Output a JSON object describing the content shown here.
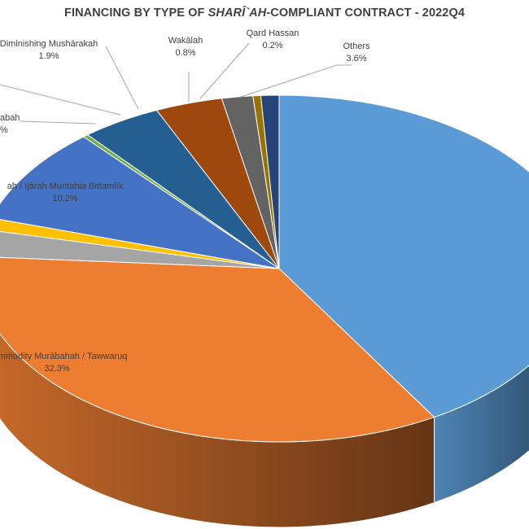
{
  "chart_data": {
    "type": "pie",
    "title_parts": {
      "before": "FINANCING BY TYPE OF ",
      "italic": "SHARĪ`AH",
      "after": "-COMPLIANT CONTRACT - 2022Q4"
    },
    "three_d": true,
    "slices": [
      {
        "label": "",
        "percent": null,
        "color": "#5b9bd5"
      },
      {
        "label": "Commodity Murābahah / Tawwaruq",
        "percent": "32.3%",
        "color": "#ed7d31"
      },
      {
        "label": "",
        "percent": null,
        "color": "#a5a5a5"
      },
      {
        "label": "",
        "percent": null,
        "color": "#ffc000"
      },
      {
        "label": "ah / Ijārah Muntahia Bittamlīk",
        "percent": "10.2%",
        "color": "#4472c4"
      },
      {
        "label": "abah",
        "percent": "%",
        "color": "#70ad47"
      },
      {
        "label": "",
        "percent": null,
        "color": "#255e91"
      },
      {
        "label": "Diminishing Mushārakah",
        "percent": "1.9%",
        "color": "#9e480e"
      },
      {
        "label": "Wakālah",
        "percent": "0.8%",
        "color": "#636363"
      },
      {
        "label": "Qard Hassan",
        "percent": "0.2%",
        "color": "#997300"
      },
      {
        "label": "Others",
        "percent": "3.6%",
        "color": "#264478"
      }
    ]
  }
}
